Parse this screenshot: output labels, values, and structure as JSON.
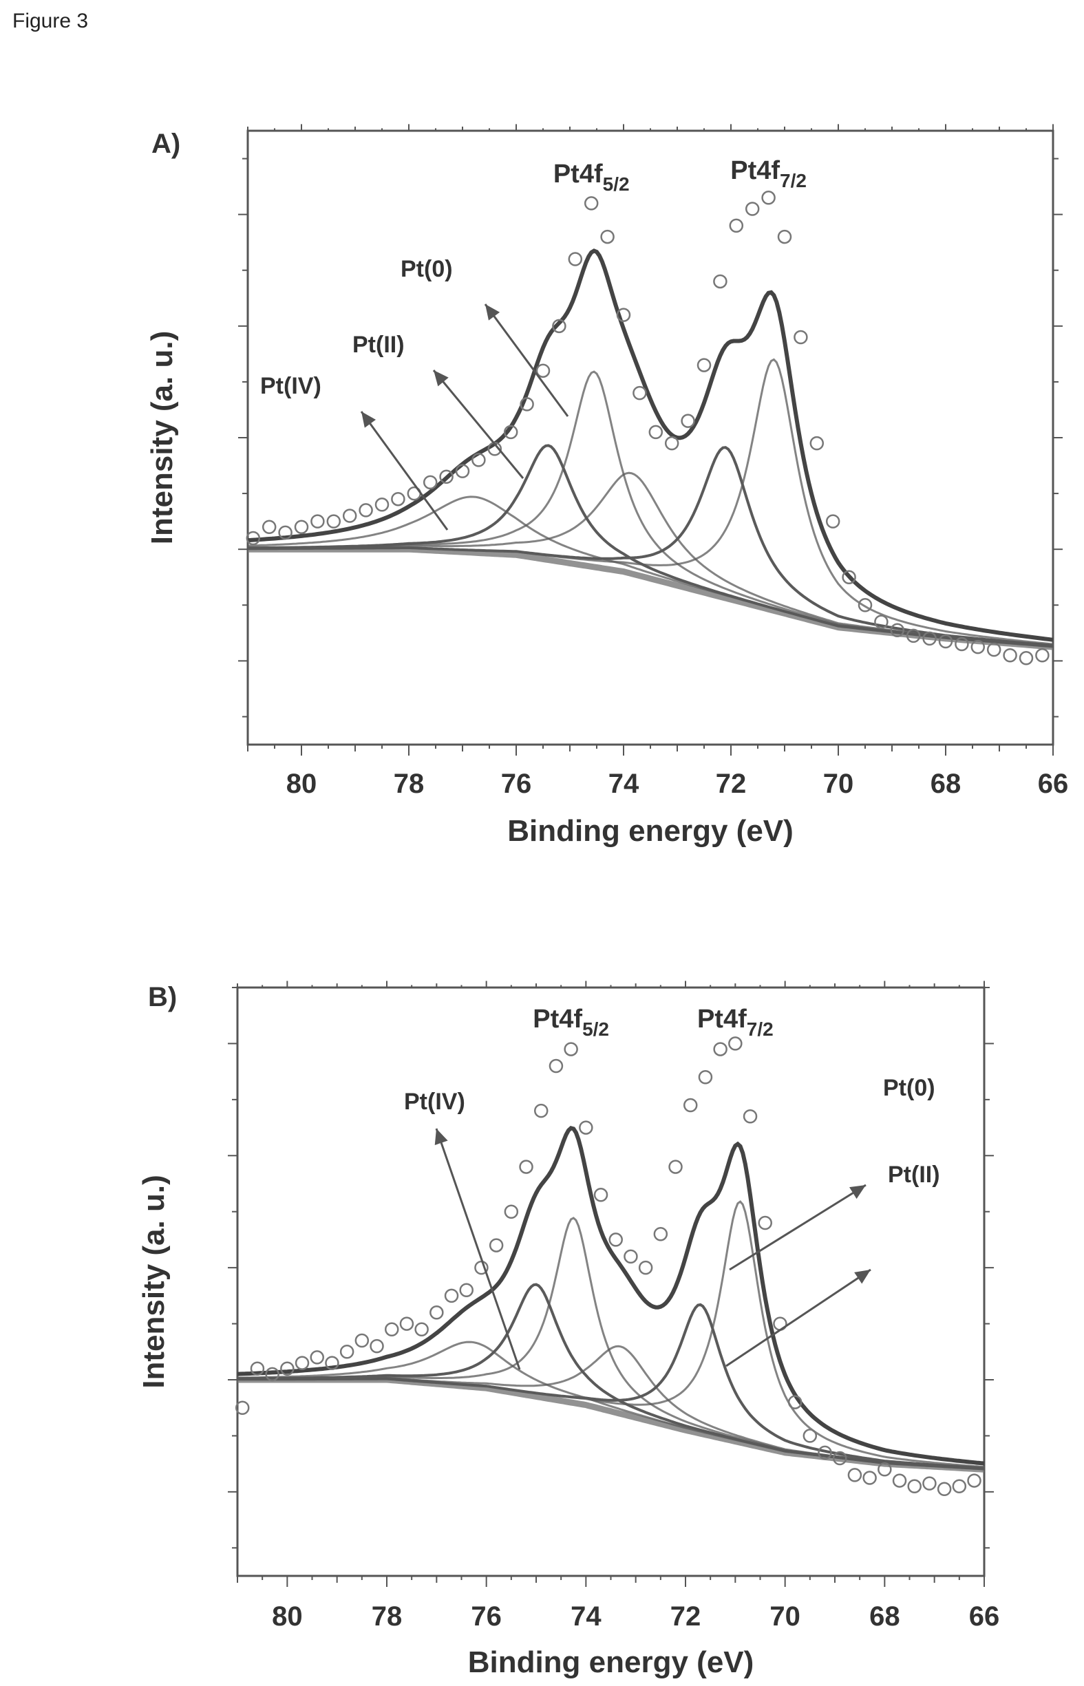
{
  "figure_label": "Figure 3",
  "colors": {
    "envelope": "#444444",
    "component": "#5a5a5a",
    "background_line": "#777777",
    "points": "#777777"
  },
  "chart_data": [
    {
      "type": "line",
      "panel_label": "A)",
      "xlabel": "Binding energy (eV)",
      "ylabel": "Intensity (a. u.)",
      "xlim": [
        81,
        66
      ],
      "x_reversed": true,
      "x_ticks": [
        80,
        78,
        76,
        74,
        72,
        70,
        68,
        66
      ],
      "y_tick_labels_shown": false,
      "grid": false,
      "peak_labels": [
        {
          "text": "Pt4f",
          "sub": "5/2",
          "x": 74.6
        },
        {
          "text": "Pt4f",
          "sub": "7/2",
          "x": 71.3
        }
      ],
      "annotations": [
        {
          "text": "Pt(0)",
          "points_to_x": 74.5
        },
        {
          "text": "Pt(II)",
          "points_to_x": 75.2
        },
        {
          "text": "Pt(IV)",
          "points_to_x": 76.6
        }
      ],
      "baseline": [
        [
          81,
          2.0
        ],
        [
          78,
          2.0
        ],
        [
          76,
          1.9
        ],
        [
          74,
          1.6
        ],
        [
          72,
          1.1
        ],
        [
          70,
          0.6
        ],
        [
          68,
          0.4
        ],
        [
          66,
          0.25
        ]
      ],
      "components": [
        {
          "name": "Pt(0) 7/2",
          "center": 71.2,
          "height": 4.5,
          "width": 0.55
        },
        {
          "name": "Pt(0) 5/2",
          "center": 74.55,
          "height": 3.5,
          "width": 0.55
        },
        {
          "name": "Pt(II) 7/2",
          "center": 72.1,
          "height": 2.7,
          "width": 0.6
        },
        {
          "name": "Pt(II) 5/2",
          "center": 75.4,
          "height": 2.05,
          "width": 0.6
        },
        {
          "name": "Pt(IV) 7/2",
          "center": 73.85,
          "height": 1.8,
          "width": 0.8
        },
        {
          "name": "Pt(IV) 5/2",
          "center": 76.8,
          "height": 1.0,
          "width": 1.1
        }
      ],
      "data_points": {
        "x": [
          80.9,
          80.6,
          80.3,
          80.0,
          79.7,
          79.4,
          79.1,
          78.8,
          78.5,
          78.2,
          77.9,
          77.6,
          77.3,
          77.0,
          76.7,
          76.4,
          76.1,
          75.8,
          75.5,
          75.2,
          74.9,
          74.6,
          74.3,
          74.0,
          73.7,
          73.4,
          73.1,
          72.8,
          72.5,
          72.2,
          71.9,
          71.6,
          71.3,
          71.0,
          70.7,
          70.4,
          70.1,
          69.8,
          69.5,
          69.2,
          68.9,
          68.6,
          68.3,
          68.0,
          67.7,
          67.4,
          67.1,
          66.8,
          66.5,
          66.2
        ],
        "y": [
          2.2,
          2.4,
          2.3,
          2.4,
          2.5,
          2.5,
          2.6,
          2.7,
          2.8,
          2.9,
          3.0,
          3.2,
          3.3,
          3.4,
          3.6,
          3.8,
          4.1,
          4.6,
          5.2,
          6.0,
          7.2,
          8.2,
          7.6,
          6.2,
          4.8,
          4.1,
          3.9,
          4.3,
          5.3,
          6.8,
          7.8,
          8.1,
          8.3,
          7.6,
          5.8,
          3.9,
          2.5,
          1.5,
          1.0,
          0.7,
          0.55,
          0.45,
          0.4,
          0.35,
          0.3,
          0.25,
          0.2,
          0.1,
          0.05,
          0.1
        ]
      },
      "ylim": [
        -1.5,
        9.5
      ]
    },
    {
      "type": "line",
      "panel_label": "B)",
      "xlabel": "Binding energy (eV)",
      "ylabel": "Intensity (a. u.)",
      "xlim": [
        81,
        66
      ],
      "x_reversed": true,
      "x_ticks": [
        80,
        78,
        76,
        74,
        72,
        70,
        68,
        66
      ],
      "y_tick_labels_shown": false,
      "grid": false,
      "peak_labels": [
        {
          "text": "Pt4f",
          "sub": "5/2",
          "x": 74.3
        },
        {
          "text": "Pt4f",
          "sub": "7/2",
          "x": 71.0
        }
      ],
      "annotations": [
        {
          "text": "Pt(IV)",
          "points_to_x": 76.0
        },
        {
          "text": "Pt(0)",
          "points_to_x": 70.9
        },
        {
          "text": "Pt(II)",
          "points_to_x": 71.6
        }
      ],
      "baseline": [
        [
          81,
          2.0
        ],
        [
          78,
          2.0
        ],
        [
          76,
          1.85
        ],
        [
          74,
          1.55
        ],
        [
          72,
          1.1
        ],
        [
          70,
          0.7
        ],
        [
          68,
          0.5
        ],
        [
          66,
          0.4
        ]
      ],
      "components": [
        {
          "name": "Pt(0) 7/2",
          "center": 70.9,
          "height": 4.3,
          "width": 0.5
        },
        {
          "name": "Pt(0) 5/2",
          "center": 74.25,
          "height": 3.3,
          "width": 0.5
        },
        {
          "name": "Pt(II) 7/2",
          "center": 71.7,
          "height": 2.3,
          "width": 0.55
        },
        {
          "name": "Pt(II) 5/2",
          "center": 75.0,
          "height": 2.0,
          "width": 0.6
        },
        {
          "name": "Pt(IV) 7/2",
          "center": 73.3,
          "height": 1.2,
          "width": 0.75
        },
        {
          "name": "Pt(IV) 5/2",
          "center": 76.3,
          "height": 0.8,
          "width": 1.0
        }
      ],
      "data_points": {
        "x": [
          80.9,
          80.6,
          80.3,
          80.0,
          79.7,
          79.4,
          79.1,
          78.8,
          78.5,
          78.2,
          77.9,
          77.6,
          77.3,
          77.0,
          76.7,
          76.4,
          76.1,
          75.8,
          75.5,
          75.2,
          74.9,
          74.6,
          74.3,
          74.0,
          73.7,
          73.4,
          73.1,
          72.8,
          72.5,
          72.2,
          71.9,
          71.6,
          71.3,
          71.0,
          70.7,
          70.4,
          70.1,
          69.8,
          69.5,
          69.2,
          68.9,
          68.6,
          68.3,
          68.0,
          67.7,
          67.4,
          67.1,
          66.8,
          66.5,
          66.2
        ],
        "y": [
          1.5,
          2.2,
          2.1,
          2.2,
          2.3,
          2.4,
          2.3,
          2.5,
          2.7,
          2.6,
          2.9,
          3.0,
          2.9,
          3.2,
          3.5,
          3.6,
          4.0,
          4.4,
          5.0,
          5.8,
          6.8,
          7.6,
          7.9,
          6.5,
          5.3,
          4.5,
          4.2,
          4.0,
          4.6,
          5.8,
          6.9,
          7.4,
          7.9,
          8.0,
          6.7,
          4.8,
          3.0,
          1.6,
          1.0,
          0.7,
          0.6,
          0.3,
          0.25,
          0.4,
          0.2,
          0.1,
          0.15,
          0.05,
          0.1,
          0.2
        ]
      },
      "ylim": [
        -1.5,
        9.0
      ]
    }
  ]
}
